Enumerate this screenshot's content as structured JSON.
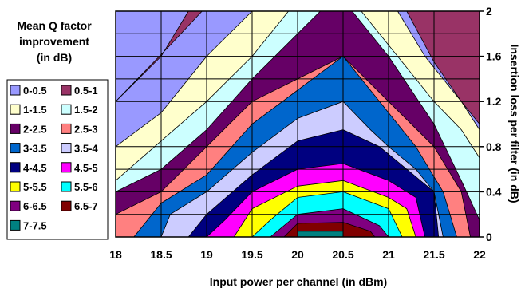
{
  "chart_data": {
    "type": "heatmap",
    "subtype": "filled-contour",
    "xlabel": "Input power per channel (in dBm)",
    "ylabel": "Insertion loss per filter (in dB)",
    "x_ticks": [
      "18",
      "18.5",
      "19",
      "19.5",
      "20",
      "20.5",
      "21",
      "21.5",
      "22"
    ],
    "y_ticks": [
      "0",
      "0.4",
      "0.8",
      "1.2",
      "1.6",
      "2"
    ],
    "xlim": [
      18,
      22
    ],
    "ylim": [
      0,
      2
    ],
    "y_axis_side": "right",
    "grid": true,
    "x_grid": [
      18,
      18.5,
      19,
      19.5,
      20,
      20.5,
      21,
      21.5,
      22
    ],
    "y_grid": [
      0,
      0.2,
      0.4,
      0.6,
      0.8,
      1.0,
      1.2,
      1.4,
      1.6,
      1.8,
      2.0
    ],
    "legend": {
      "title_lines": [
        "Mean Q factor",
        "improvement",
        "(in dB)"
      ],
      "position": "left",
      "entries": [
        {
          "label": "0-0.5",
          "color": "#9999FF"
        },
        {
          "label": "0.5-1",
          "color": "#993366"
        },
        {
          "label": "1-1.5",
          "color": "#FFFFCC"
        },
        {
          "label": "1.5-2",
          "color": "#CCFFFF"
        },
        {
          "label": "2-2.5",
          "color": "#660066"
        },
        {
          "label": "2.5-3",
          "color": "#FF8080"
        },
        {
          "label": "3-3.5",
          "color": "#0066CC"
        },
        {
          "label": "3.5-4",
          "color": "#CCCCFF"
        },
        {
          "label": "4-4.5",
          "color": "#000080"
        },
        {
          "label": "4.5-5",
          "color": "#FF00FF"
        },
        {
          "label": "5-5.5",
          "color": "#FFFF00"
        },
        {
          "label": "5.5-6",
          "color": "#00FFFF"
        },
        {
          "label": "6-6.5",
          "color": "#800080"
        },
        {
          "label": "6.5-7",
          "color": "#800000"
        },
        {
          "label": "7-7.5",
          "color": "#008080"
        }
      ]
    },
    "contours": [
      {
        "level": "0.5-1",
        "points": [
          [
            18,
            1.2
          ],
          [
            18.5,
            1.6
          ],
          [
            18.8,
            2.0
          ],
          [
            22,
            2.0
          ],
          [
            22,
            1.0
          ],
          [
            21.8,
            1.2
          ],
          [
            21.5,
            1.55
          ],
          [
            21.2,
            2.0
          ],
          [
            21.0,
            2.0
          ],
          [
            20.75,
            2.0
          ],
          [
            20.25,
            2.0
          ],
          [
            19.9,
            2.0
          ],
          [
            19.6,
            2.0
          ],
          [
            19.2,
            2.0
          ],
          [
            18.95,
            2.0
          ],
          [
            18.6,
            1.7
          ],
          [
            18.3,
            1.45
          ],
          [
            18,
            1.2
          ]
        ]
      },
      {
        "level": "1-1.5",
        "points": [
          [
            18,
            0.8
          ],
          [
            18.5,
            1.1
          ],
          [
            19,
            1.6
          ],
          [
            19.5,
            2.0
          ],
          [
            21.1,
            2.0
          ],
          [
            21.4,
            1.6
          ],
          [
            21.8,
            1.2
          ],
          [
            22,
            0.95
          ],
          [
            22,
            0
          ],
          [
            18,
            0
          ]
        ]
      },
      {
        "level": "1.5-2",
        "points": [
          [
            18,
            0.5
          ],
          [
            18.5,
            0.85
          ],
          [
            19,
            1.2
          ],
          [
            19.5,
            1.6
          ],
          [
            19.9,
            2.0
          ],
          [
            20.7,
            2.0
          ],
          [
            21.1,
            1.6
          ],
          [
            21.5,
            1.2
          ],
          [
            21.8,
            0.95
          ],
          [
            22,
            0.7
          ],
          [
            22,
            0
          ],
          [
            18,
            0
          ]
        ]
      },
      {
        "level": "2-2.5",
        "points": [
          [
            18,
            0.4
          ],
          [
            18.5,
            0.6
          ],
          [
            19,
            0.95
          ],
          [
            19.5,
            1.4
          ],
          [
            20,
            1.8
          ],
          [
            20.25,
            2.0
          ],
          [
            20.6,
            2.0
          ],
          [
            21,
            1.6
          ],
          [
            21.5,
            1.0
          ],
          [
            21.8,
            0.5
          ],
          [
            22,
            0.15
          ],
          [
            22,
            0
          ],
          [
            18,
            0
          ]
        ]
      },
      {
        "level": "2.5-3",
        "points": [
          [
            18,
            0.2
          ],
          [
            18.5,
            0.4
          ],
          [
            19,
            0.8
          ],
          [
            19.5,
            1.2
          ],
          [
            20.5,
            1.6
          ],
          [
            21,
            1.2
          ],
          [
            21.5,
            0.8
          ],
          [
            21.8,
            0.4
          ],
          [
            21.9,
            0
          ],
          [
            18,
            0
          ]
        ]
      },
      {
        "level": "3-3.5",
        "points": [
          [
            18.2,
            0
          ],
          [
            18.5,
            0.3
          ],
          [
            19,
            0.55
          ],
          [
            19.5,
            1.0
          ],
          [
            20,
            1.3
          ],
          [
            20.5,
            1.6
          ],
          [
            21,
            1.1
          ],
          [
            21.3,
            0.8
          ],
          [
            21.6,
            0.4
          ],
          [
            21.75,
            0
          ],
          [
            18.2,
            0
          ]
        ]
      },
      {
        "level": "3.5-4",
        "points": [
          [
            18.5,
            0
          ],
          [
            18.6,
            0.2
          ],
          [
            19,
            0.4
          ],
          [
            19.5,
            0.75
          ],
          [
            20,
            1.05
          ],
          [
            20.5,
            1.2
          ],
          [
            20.8,
            0.95
          ],
          [
            21,
            0.8
          ],
          [
            21.3,
            0.6
          ],
          [
            21.5,
            0.4
          ],
          [
            21.6,
            0
          ],
          [
            18.5,
            0
          ]
        ]
      },
      {
        "level": "4-4.5",
        "points": [
          [
            18.8,
            0
          ],
          [
            19,
            0.2
          ],
          [
            19.5,
            0.55
          ],
          [
            20,
            0.85
          ],
          [
            20.5,
            0.95
          ],
          [
            20.9,
            0.8
          ],
          [
            21.2,
            0.6
          ],
          [
            21.5,
            0.4
          ],
          [
            21.55,
            0
          ],
          [
            18.8,
            0
          ]
        ]
      },
      {
        "level": "4.5-5",
        "points": [
          [
            19,
            0
          ],
          [
            19.2,
            0.15
          ],
          [
            19.5,
            0.4
          ],
          [
            20,
            0.6
          ],
          [
            20.5,
            0.65
          ],
          [
            21,
            0.5
          ],
          [
            21.3,
            0.35
          ],
          [
            21.4,
            0
          ],
          [
            19,
            0
          ]
        ]
      },
      {
        "level": "5-5.5",
        "points": [
          [
            19.3,
            0
          ],
          [
            19.5,
            0.25
          ],
          [
            20,
            0.45
          ],
          [
            20.5,
            0.5
          ],
          [
            21,
            0.35
          ],
          [
            21.2,
            0.25
          ],
          [
            21.3,
            0
          ],
          [
            19.3,
            0
          ]
        ]
      },
      {
        "level": "5.5-6",
        "points": [
          [
            19.5,
            0
          ],
          [
            19.7,
            0.15
          ],
          [
            20,
            0.35
          ],
          [
            20.5,
            0.4
          ],
          [
            21,
            0.25
          ],
          [
            21.15,
            0
          ],
          [
            19.5,
            0
          ]
        ]
      },
      {
        "level": "6-6.5",
        "points": [
          [
            19.7,
            0
          ],
          [
            20,
            0.2
          ],
          [
            20.5,
            0.25
          ],
          [
            20.9,
            0.1
          ],
          [
            21,
            0
          ],
          [
            19.7,
            0
          ]
        ]
      },
      {
        "level": "6.5-7",
        "points": [
          [
            19.85,
            0
          ],
          [
            20,
            0.12
          ],
          [
            20.5,
            0.13
          ],
          [
            20.8,
            0.05
          ],
          [
            20.85,
            0
          ],
          [
            19.85,
            0
          ]
        ]
      },
      {
        "level": "7-7.5",
        "points": [
          [
            20,
            0
          ],
          [
            20,
            0.05
          ],
          [
            20.5,
            0.05
          ],
          [
            20.5,
            0
          ],
          [
            20,
            0
          ]
        ]
      }
    ]
  }
}
